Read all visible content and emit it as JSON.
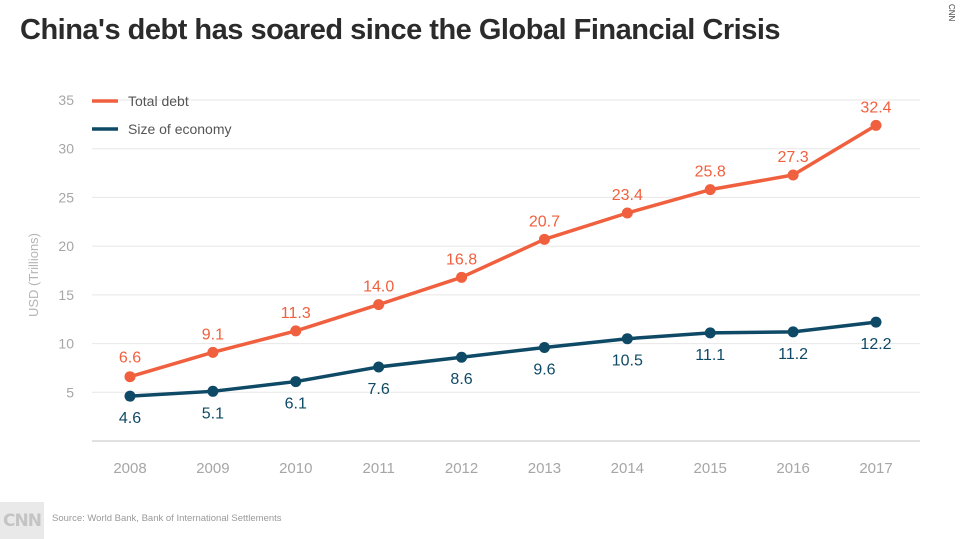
{
  "header": {
    "title": "China's debt has soared since the Global Financial Crisis"
  },
  "watermark": "CNN",
  "logo_text": "CNN",
  "source": "Source:  World Bank, Bank of International Settlements",
  "chart_data": {
    "type": "line",
    "title": "China's debt has soared since the Global Financial Crisis",
    "ylabel": "USD (Trillions)",
    "xlabel": "",
    "ylim": [
      0,
      35
    ],
    "yticks": [
      5,
      10,
      15,
      20,
      25,
      30,
      35
    ],
    "grid": true,
    "legend_position": "top-left",
    "categories": [
      "2008",
      "2009",
      "2010",
      "2011",
      "2012",
      "2013",
      "2014",
      "2015",
      "2016",
      "2017"
    ],
    "series": [
      {
        "name": "Total debt",
        "color": "#f0603e",
        "values": [
          6.6,
          9.1,
          11.3,
          14.0,
          16.8,
          20.7,
          23.4,
          25.8,
          27.3,
          32.4
        ],
        "labels": [
          "6.6",
          "9.1",
          "11.3",
          "14.0",
          "16.8",
          "20.7",
          "23.4",
          "25.8",
          "27.3",
          "32.4"
        ]
      },
      {
        "name": "Size of economy",
        "color": "#0e4a66",
        "values": [
          4.6,
          5.1,
          6.1,
          7.6,
          8.6,
          9.6,
          10.5,
          11.1,
          11.2,
          12.2
        ],
        "labels": [
          "4.6",
          "5.1",
          "6.1",
          "7.6",
          "8.6",
          "9.6",
          "10.5",
          "11.1",
          "11.2",
          "12.2"
        ]
      }
    ]
  }
}
